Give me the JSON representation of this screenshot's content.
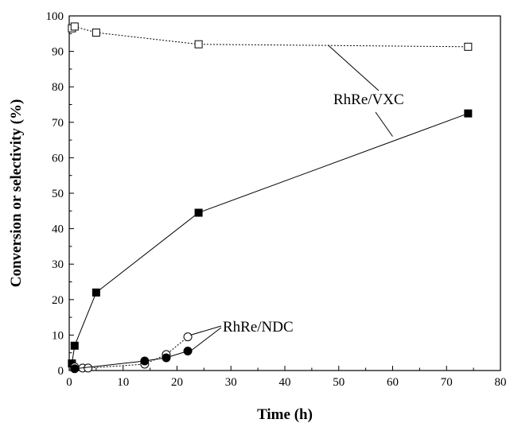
{
  "chart_data": {
    "type": "scatter",
    "title": "",
    "xlabel": "Time (h)",
    "ylabel": "Conversion or selectivity (%)",
    "xlim": [
      0,
      80
    ],
    "ylim": [
      0,
      100
    ],
    "xticks": [
      "0",
      "10",
      "20",
      "30",
      "40",
      "50",
      "60",
      "70",
      "80"
    ],
    "yticks": [
      "0",
      "10",
      "20",
      "30",
      "40",
      "50",
      "60",
      "70",
      "80",
      "90",
      "100"
    ],
    "grid": false,
    "legend": "none",
    "series": [
      {
        "marker": "square",
        "fill": "open",
        "line": "dotted",
        "color": "#000000",
        "x": [
          0.5,
          1,
          5,
          24,
          74
        ],
        "y": [
          96.5,
          97,
          95.3,
          92,
          91.3
        ]
      },
      {
        "marker": "square",
        "fill": "filled",
        "line": "solid",
        "color": "#000000",
        "x": [
          0.5,
          1,
          5,
          24,
          74
        ],
        "y": [
          2,
          7,
          22,
          44.5,
          72.5
        ]
      },
      {
        "marker": "circle",
        "fill": "open",
        "line": "dotted",
        "color": "#000000",
        "x": [
          1,
          2.5,
          3.5,
          14,
          18,
          22
        ],
        "y": [
          1,
          0.7,
          0.7,
          1.8,
          4.5,
          9.5
        ]
      },
      {
        "marker": "circle",
        "fill": "filled",
        "line": "solid",
        "color": "#000000",
        "x": [
          1,
          14,
          18,
          22
        ],
        "y": [
          0.5,
          2.7,
          3.6,
          5.5
        ]
      }
    ],
    "annotations": [
      {
        "text": "RhRe/VXC",
        "targets": [
          {
            "x": 48,
            "y": 91.8
          },
          {
            "x": 60,
            "y": 66
          }
        ]
      },
      {
        "text": "RhRe/NDC",
        "targets": [
          {
            "x": 22.5,
            "y": 10
          },
          {
            "x": 22.5,
            "y": 5.5
          }
        ]
      }
    ]
  }
}
